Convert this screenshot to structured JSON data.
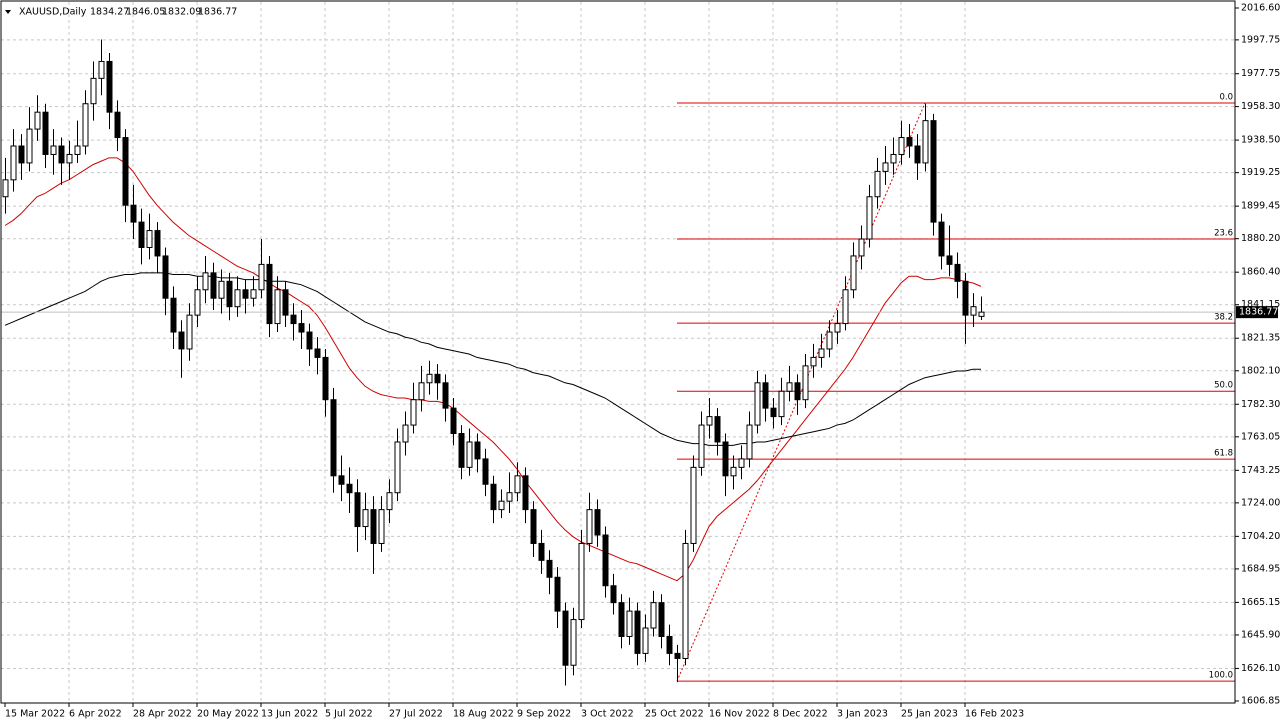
{
  "chart_data": {
    "type": "candlestick",
    "title": "XAUUSD,Daily",
    "bull_color": "#ffffff",
    "bear_color": "#000000",
    "grid": true,
    "ylim": [
      1606.85,
      2016.6
    ],
    "yticks": [
      {
        "value": 2016.6,
        "label": "2016.60"
      },
      {
        "value": 1997.75,
        "label": "1997.75"
      },
      {
        "value": 1977.75,
        "label": "1977.75"
      },
      {
        "value": 1958.3,
        "label": "1958.30"
      },
      {
        "value": 1938.5,
        "label": "1938.50"
      },
      {
        "value": 1919.25,
        "label": "1919.25"
      },
      {
        "value": 1899.45,
        "label": "1899.45"
      },
      {
        "value": 1880.2,
        "label": "1880.20"
      },
      {
        "value": 1860.4,
        "label": "1860.40"
      },
      {
        "value": 1841.15,
        "label": "1841.15"
      },
      {
        "value": 1821.35,
        "label": "1821.35"
      },
      {
        "value": 1802.1,
        "label": "1802.10"
      },
      {
        "value": 1782.3,
        "label": "1782.30"
      },
      {
        "value": 1763.05,
        "label": "1763.05"
      },
      {
        "value": 1743.25,
        "label": "1743.25"
      },
      {
        "value": 1724.0,
        "label": "1724.00"
      },
      {
        "value": 1704.2,
        "label": "1704.20"
      },
      {
        "value": 1684.95,
        "label": "1684.95"
      },
      {
        "value": 1665.15,
        "label": "1665.15"
      },
      {
        "value": 1645.9,
        "label": "1645.90"
      },
      {
        "value": 1626.1,
        "label": "1626.10"
      },
      {
        "value": 1606.85,
        "label": "1606.85"
      }
    ],
    "categories": [
      "15 Mar 2022",
      null,
      null,
      null,
      null,
      null,
      null,
      null,
      "6 Apr 2022",
      null,
      null,
      null,
      null,
      null,
      null,
      null,
      "28 Apr 2022",
      null,
      null,
      null,
      null,
      null,
      null,
      null,
      "20 May 2022",
      null,
      null,
      null,
      null,
      null,
      null,
      null,
      "13 Jun 2022",
      null,
      null,
      null,
      null,
      null,
      null,
      null,
      "5 Jul 2022",
      null,
      null,
      null,
      null,
      null,
      null,
      null,
      "27 Jul 2022",
      null,
      null,
      null,
      null,
      null,
      null,
      null,
      "18 Aug 2022",
      null,
      null,
      null,
      null,
      null,
      null,
      null,
      "9 Sep 2022",
      null,
      null,
      null,
      null,
      null,
      null,
      null,
      "3 Oct 2022",
      null,
      null,
      null,
      null,
      null,
      null,
      null,
      "25 Oct 2022",
      null,
      null,
      null,
      null,
      null,
      null,
      null,
      "16 Nov 2022",
      null,
      null,
      null,
      null,
      null,
      null,
      null,
      "8 Dec 2022",
      null,
      null,
      null,
      null,
      null,
      null,
      null,
      "3 Jan 2023",
      null,
      null,
      null,
      null,
      null,
      null,
      null,
      "25 Jan 2023",
      null,
      null,
      null,
      null,
      null,
      null,
      null,
      "16 Feb 2023",
      null,
      null
    ],
    "ohlc": [
      [
        1905,
        1928,
        1895,
        1915
      ],
      [
        1915,
        1945,
        1908,
        1935
      ],
      [
        1935,
        1942,
        1915,
        1925
      ],
      [
        1925,
        1958,
        1920,
        1945
      ],
      [
        1945,
        1965,
        1938,
        1955
      ],
      [
        1955,
        1960,
        1922,
        1930
      ],
      [
        1930,
        1945,
        1918,
        1935
      ],
      [
        1935,
        1940,
        1912,
        1925
      ],
      [
        1925,
        1938,
        1915,
        1930
      ],
      [
        1930,
        1950,
        1925,
        1935
      ],
      [
        1935,
        1968,
        1930,
        1960
      ],
      [
        1960,
        1985,
        1950,
        1975
      ],
      [
        1975,
        1998,
        1965,
        1985
      ],
      [
        1985,
        1990,
        1945,
        1955
      ],
      [
        1955,
        1962,
        1932,
        1940
      ],
      [
        1940,
        1945,
        1890,
        1900
      ],
      [
        1900,
        1912,
        1880,
        1890
      ],
      [
        1890,
        1898,
        1865,
        1875
      ],
      [
        1875,
        1895,
        1868,
        1885
      ],
      [
        1885,
        1890,
        1860,
        1870
      ],
      [
        1870,
        1875,
        1835,
        1845
      ],
      [
        1845,
        1852,
        1815,
        1825
      ],
      [
        1825,
        1832,
        1798,
        1815
      ],
      [
        1815,
        1842,
        1808,
        1835
      ],
      [
        1835,
        1858,
        1828,
        1850
      ],
      [
        1850,
        1870,
        1842,
        1860
      ],
      [
        1860,
        1866,
        1838,
        1845
      ],
      [
        1845,
        1862,
        1836,
        1855
      ],
      [
        1855,
        1860,
        1832,
        1840
      ],
      [
        1840,
        1858,
        1834,
        1850
      ],
      [
        1850,
        1856,
        1836,
        1845
      ],
      [
        1845,
        1858,
        1840,
        1850
      ],
      [
        1850,
        1880,
        1845,
        1865
      ],
      [
        1865,
        1870,
        1822,
        1830
      ],
      [
        1830,
        1858,
        1825,
        1850
      ],
      [
        1850,
        1855,
        1828,
        1835
      ],
      [
        1835,
        1842,
        1820,
        1830
      ],
      [
        1830,
        1838,
        1815,
        1825
      ],
      [
        1825,
        1830,
        1805,
        1815
      ],
      [
        1815,
        1822,
        1800,
        1810
      ],
      [
        1810,
        1815,
        1775,
        1785
      ],
      [
        1785,
        1792,
        1730,
        1740
      ],
      [
        1740,
        1752,
        1725,
        1735
      ],
      [
        1735,
        1745,
        1718,
        1730
      ],
      [
        1730,
        1738,
        1695,
        1710
      ],
      [
        1710,
        1730,
        1702,
        1720
      ],
      [
        1720,
        1728,
        1682,
        1700
      ],
      [
        1700,
        1728,
        1695,
        1720
      ],
      [
        1720,
        1738,
        1712,
        1730
      ],
      [
        1730,
        1768,
        1725,
        1760
      ],
      [
        1760,
        1778,
        1752,
        1770
      ],
      [
        1770,
        1795,
        1765,
        1785
      ],
      [
        1785,
        1805,
        1778,
        1795
      ],
      [
        1795,
        1808,
        1788,
        1800
      ],
      [
        1800,
        1806,
        1785,
        1795
      ],
      [
        1795,
        1800,
        1772,
        1780
      ],
      [
        1780,
        1786,
        1758,
        1765
      ],
      [
        1765,
        1770,
        1738,
        1745
      ],
      [
        1745,
        1768,
        1740,
        1760
      ],
      [
        1760,
        1765,
        1742,
        1750
      ],
      [
        1750,
        1756,
        1728,
        1735
      ],
      [
        1735,
        1740,
        1712,
        1720
      ],
      [
        1720,
        1732,
        1715,
        1725
      ],
      [
        1725,
        1742,
        1718,
        1730
      ],
      [
        1730,
        1748,
        1725,
        1740
      ],
      [
        1740,
        1745,
        1712,
        1720
      ],
      [
        1720,
        1725,
        1692,
        1700
      ],
      [
        1700,
        1708,
        1682,
        1690
      ],
      [
        1690,
        1696,
        1670,
        1680
      ],
      [
        1680,
        1686,
        1650,
        1660
      ],
      [
        1660,
        1665,
        1616,
        1628
      ],
      [
        1628,
        1662,
        1622,
        1655
      ],
      [
        1655,
        1708,
        1650,
        1700
      ],
      [
        1700,
        1730,
        1695,
        1720
      ],
      [
        1720,
        1726,
        1698,
        1705
      ],
      [
        1705,
        1710,
        1668,
        1675
      ],
      [
        1675,
        1682,
        1658,
        1665
      ],
      [
        1665,
        1670,
        1638,
        1645
      ],
      [
        1645,
        1668,
        1640,
        1660
      ],
      [
        1660,
        1665,
        1628,
        1635
      ],
      [
        1635,
        1658,
        1630,
        1650
      ],
      [
        1650,
        1672,
        1645,
        1665
      ],
      [
        1665,
        1670,
        1638,
        1645
      ],
      [
        1645,
        1652,
        1628,
        1635
      ],
      [
        1635,
        1640,
        1618,
        1632
      ],
      [
        1632,
        1708,
        1628,
        1700
      ],
      [
        1700,
        1752,
        1695,
        1745
      ],
      [
        1745,
        1778,
        1740,
        1770
      ],
      [
        1770,
        1786,
        1762,
        1775
      ],
      [
        1775,
        1780,
        1752,
        1760
      ],
      [
        1760,
        1765,
        1728,
        1740
      ],
      [
        1740,
        1752,
        1732,
        1745
      ],
      [
        1745,
        1758,
        1738,
        1750
      ],
      [
        1750,
        1778,
        1745,
        1770
      ],
      [
        1770,
        1802,
        1765,
        1795
      ],
      [
        1795,
        1800,
        1772,
        1780
      ],
      [
        1780,
        1786,
        1768,
        1775
      ],
      [
        1775,
        1798,
        1770,
        1790
      ],
      [
        1790,
        1805,
        1784,
        1795
      ],
      [
        1795,
        1800,
        1776,
        1785
      ],
      [
        1785,
        1812,
        1780,
        1805
      ],
      [
        1805,
        1818,
        1798,
        1810
      ],
      [
        1810,
        1824,
        1804,
        1815
      ],
      [
        1815,
        1832,
        1810,
        1825
      ],
      [
        1825,
        1838,
        1818,
        1830
      ],
      [
        1830,
        1858,
        1826,
        1850
      ],
      [
        1850,
        1878,
        1845,
        1870
      ],
      [
        1870,
        1888,
        1862,
        1880
      ],
      [
        1880,
        1912,
        1875,
        1905
      ],
      [
        1905,
        1928,
        1898,
        1920
      ],
      [
        1920,
        1935,
        1912,
        1925
      ],
      [
        1925,
        1940,
        1918,
        1930
      ],
      [
        1930,
        1950,
        1924,
        1940
      ],
      [
        1940,
        1948,
        1928,
        1935
      ],
      [
        1935,
        1942,
        1915,
        1925
      ],
      [
        1925,
        1960,
        1920,
        1950
      ],
      [
        1950,
        1954,
        1882,
        1890
      ],
      [
        1890,
        1895,
        1862,
        1870
      ],
      [
        1870,
        1888,
        1858,
        1865
      ],
      [
        1865,
        1872,
        1845,
        1855
      ],
      [
        1855,
        1860,
        1818,
        1835
      ],
      [
        1835,
        1848,
        1828,
        1840
      ],
      [
        1834.27,
        1846.05,
        1832.09,
        1836.77
      ]
    ],
    "series": [
      {
        "color": "#d00000",
        "values": [
          1888,
          1891,
          1895,
          1900,
          1905,
          1907,
          1910,
          1913,
          1915,
          1918,
          1921,
          1924,
          1926,
          1928,
          1928,
          1925,
          1920,
          1913,
          1906,
          1900,
          1895,
          1890,
          1886,
          1882,
          1879,
          1876,
          1873,
          1870,
          1867,
          1864,
          1862,
          1860,
          1857,
          1854,
          1851,
          1849,
          1846,
          1843,
          1840,
          1835,
          1828,
          1820,
          1812,
          1804,
          1798,
          1793,
          1790,
          1788,
          1787,
          1786,
          1786,
          1785,
          1785,
          1784,
          1784,
          1783,
          1780,
          1776,
          1772,
          1768,
          1764,
          1760,
          1755,
          1750,
          1744,
          1737,
          1731,
          1725,
          1719,
          1713,
          1708,
          1704,
          1701,
          1699,
          1697,
          1695,
          1693,
          1691,
          1689,
          1688,
          1686,
          1684,
          1682,
          1680,
          1678,
          1682,
          1690,
          1700,
          1710,
          1716,
          1720,
          1724,
          1728,
          1732,
          1737,
          1743,
          1749,
          1755,
          1761,
          1767,
          1773,
          1779,
          1785,
          1791,
          1797,
          1803,
          1810,
          1818,
          1826,
          1834,
          1842,
          1848,
          1854,
          1858,
          1858,
          1856,
          1856,
          1857,
          1857,
          1856,
          1855,
          1854,
          1852
        ]
      },
      {
        "color": "#000000",
        "values": [
          1829,
          1831,
          1833,
          1835,
          1837,
          1839,
          1841,
          1843,
          1845,
          1847,
          1849,
          1852,
          1855,
          1857,
          1858,
          1859,
          1859,
          1860,
          1860,
          1860,
          1860,
          1859,
          1859,
          1859,
          1858,
          1858,
          1858,
          1857,
          1857,
          1857,
          1856,
          1856,
          1856,
          1855,
          1855,
          1855,
          1854,
          1853,
          1851,
          1849,
          1846,
          1843,
          1840,
          1837,
          1834,
          1831,
          1829,
          1827,
          1825,
          1824,
          1822,
          1821,
          1819,
          1818,
          1816,
          1815,
          1814,
          1813,
          1812,
          1810,
          1809,
          1808,
          1807,
          1806,
          1804,
          1803,
          1801,
          1800,
          1799,
          1797,
          1795,
          1794,
          1792,
          1790,
          1788,
          1786,
          1783,
          1780,
          1777,
          1774,
          1771,
          1768,
          1765,
          1763,
          1761,
          1760,
          1759,
          1759,
          1758,
          1758,
          1758,
          1758,
          1759,
          1759,
          1760,
          1760,
          1761,
          1762,
          1763,
          1764,
          1765,
          1766,
          1767,
          1768,
          1770,
          1771,
          1773,
          1776,
          1779,
          1782,
          1785,
          1788,
          1791,
          1794,
          1796,
          1798,
          1799,
          1800,
          1801,
          1802,
          1802,
          1803,
          1803
        ]
      }
    ],
    "fibonacci": {
      "color": "#e00000",
      "levels": [
        {
          "value": 1960.4,
          "label": "0.0"
        },
        {
          "value": 1880.0,
          "label": "23.6"
        },
        {
          "value": 1830.3,
          "label": "38.2"
        },
        {
          "value": 1790.0,
          "label": "50.0"
        },
        {
          "value": 1749.9,
          "label": "61.8"
        },
        {
          "value": 1618.6,
          "label": "100.0"
        }
      ]
    }
  }
}
